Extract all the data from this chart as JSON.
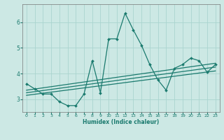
{
  "xlabel": "Humidex (Indice chaleur)",
  "ylabel": "",
  "bg_color": "#cce8e4",
  "grid_color": "#aad4cf",
  "line_color": "#1a7a6e",
  "xlim": [
    -0.5,
    23.5
  ],
  "ylim": [
    2.5,
    6.7
  ],
  "xticks": [
    0,
    1,
    2,
    3,
    4,
    5,
    6,
    7,
    8,
    9,
    10,
    11,
    12,
    13,
    14,
    15,
    16,
    17,
    18,
    19,
    20,
    21,
    22,
    23
  ],
  "yticks": [
    3,
    4,
    5,
    6
  ],
  "curve_x": [
    0,
    1,
    2,
    3,
    4,
    5,
    6,
    7,
    8,
    9,
    10,
    11,
    12,
    13,
    14,
    15,
    16,
    17,
    18,
    19,
    20,
    21,
    22,
    23
  ],
  "curve_y": [
    3.6,
    3.4,
    3.2,
    3.2,
    2.9,
    2.75,
    2.75,
    3.2,
    4.5,
    3.25,
    5.35,
    5.35,
    6.35,
    5.7,
    5.1,
    4.35,
    3.75,
    3.35,
    4.2,
    4.35,
    4.6,
    4.5,
    4.05,
    4.35
  ],
  "line1_x": [
    0,
    23
  ],
  "line1_y": [
    3.15,
    4.1
  ],
  "line2_x": [
    0,
    23
  ],
  "line2_y": [
    3.25,
    4.25
  ],
  "line3_x": [
    0,
    23
  ],
  "line3_y": [
    3.35,
    4.4
  ]
}
